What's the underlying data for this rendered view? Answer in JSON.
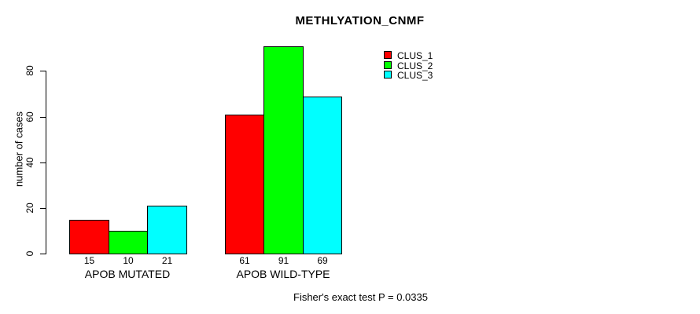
{
  "chart_data": {
    "type": "bar",
    "title": "METHLYATION_CNMF",
    "ylabel": "number of cases",
    "xlabel": "",
    "categories": [
      "APOB MUTATED",
      "APOB WILD-TYPE"
    ],
    "series": [
      {
        "name": "CLUS_1",
        "color": "#FF0000",
        "values": [
          15,
          61
        ]
      },
      {
        "name": "CLUS_2",
        "color": "#00FF00",
        "values": [
          10,
          91
        ]
      },
      {
        "name": "CLUS_3",
        "color": "#00FFFF",
        "values": [
          21,
          69
        ]
      }
    ],
    "bar_value_labels": [
      [
        15,
        10,
        21
      ],
      [
        61,
        91,
        69
      ]
    ],
    "yticks": [
      0,
      20,
      40,
      60,
      80
    ],
    "ylim": [
      0,
      95
    ],
    "grid": false,
    "legend_position": "top-right",
    "bar_border_color": "#000000",
    "axis_color": "#000000",
    "background_color": "#FFFFFF",
    "footnote": "Fisher's exact test P = 0.0335"
  }
}
